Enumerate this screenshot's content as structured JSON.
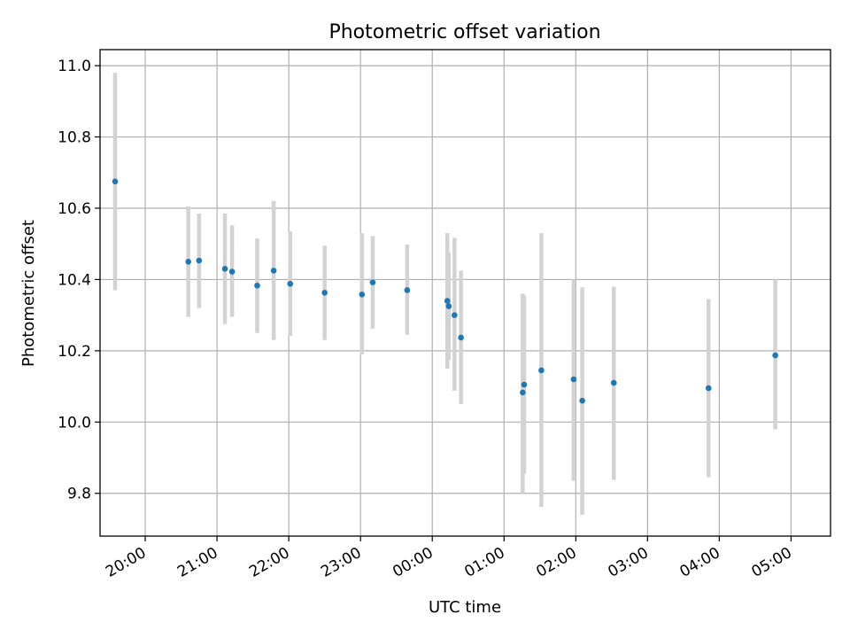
{
  "chart_data": {
    "type": "scatter",
    "title": "Photometric offset variation",
    "xlabel": "UTC time",
    "ylabel": "Photometric offset",
    "x_unit": "hours since 19:00 UTC (ticks wrap past midnight)",
    "xlim": [
      0.37,
      10.55
    ],
    "ylim": [
      9.68,
      11.045
    ],
    "x_ticks": [
      {
        "x": 1,
        "label": "20:00"
      },
      {
        "x": 2,
        "label": "21:00"
      },
      {
        "x": 3,
        "label": "22:00"
      },
      {
        "x": 4,
        "label": "23:00"
      },
      {
        "x": 5,
        "label": "00:00"
      },
      {
        "x": 6,
        "label": "01:00"
      },
      {
        "x": 7,
        "label": "02:00"
      },
      {
        "x": 8,
        "label": "03:00"
      },
      {
        "x": 9,
        "label": "04:00"
      },
      {
        "x": 10,
        "label": "05:00"
      }
    ],
    "y_ticks": [
      {
        "y": 9.8,
        "label": "9.8"
      },
      {
        "y": 10.0,
        "label": "10.0"
      },
      {
        "y": 10.2,
        "label": "10.2"
      },
      {
        "y": 10.4,
        "label": "10.4"
      },
      {
        "y": 10.6,
        "label": "10.6"
      },
      {
        "y": 10.8,
        "label": "10.8"
      },
      {
        "y": 11.0,
        "label": "11.0"
      }
    ],
    "grid": true,
    "colors": {
      "point": "#1f77b4",
      "errorbar": "#d3d3d3",
      "grid": "#b0b0b0"
    },
    "points": [
      {
        "x": 0.58,
        "y": 10.675,
        "err_lo": 10.37,
        "err_hi": 10.98
      },
      {
        "x": 1.6,
        "y": 10.45,
        "err_lo": 10.295,
        "err_hi": 10.605
      },
      {
        "x": 1.75,
        "y": 10.453,
        "err_lo": 10.32,
        "err_hi": 10.585
      },
      {
        "x": 2.11,
        "y": 10.43,
        "err_lo": 10.275,
        "err_hi": 10.585
      },
      {
        "x": 2.21,
        "y": 10.422,
        "err_lo": 10.295,
        "err_hi": 10.552
      },
      {
        "x": 2.56,
        "y": 10.383,
        "err_lo": 10.25,
        "err_hi": 10.515
      },
      {
        "x": 2.79,
        "y": 10.425,
        "err_lo": 10.23,
        "err_hi": 10.62
      },
      {
        "x": 3.02,
        "y": 10.388,
        "err_lo": 10.242,
        "err_hi": 10.535
      },
      {
        "x": 3.5,
        "y": 10.363,
        "err_lo": 10.23,
        "err_hi": 10.495
      },
      {
        "x": 4.02,
        "y": 10.358,
        "err_lo": 10.19,
        "err_hi": 10.53
      },
      {
        "x": 4.17,
        "y": 10.392,
        "err_lo": 10.262,
        "err_hi": 10.522
      },
      {
        "x": 4.65,
        "y": 10.37,
        "err_lo": 10.245,
        "err_hi": 10.498
      },
      {
        "x": 5.21,
        "y": 10.34,
        "err_lo": 10.15,
        "err_hi": 10.53
      },
      {
        "x": 5.23,
        "y": 10.325,
        "err_lo": 10.175,
        "err_hi": 10.475
      },
      {
        "x": 5.31,
        "y": 10.3,
        "err_lo": 10.088,
        "err_hi": 10.517
      },
      {
        "x": 5.4,
        "y": 10.237,
        "err_lo": 10.05,
        "err_hi": 10.425
      },
      {
        "x": 6.26,
        "y": 10.083,
        "err_lo": 9.8,
        "err_hi": 10.36
      },
      {
        "x": 6.28,
        "y": 10.105,
        "err_lo": 9.855,
        "err_hi": 10.355
      },
      {
        "x": 6.52,
        "y": 10.145,
        "err_lo": 9.762,
        "err_hi": 10.53
      },
      {
        "x": 6.97,
        "y": 10.12,
        "err_lo": 9.835,
        "err_hi": 10.4
      },
      {
        "x": 7.09,
        "y": 10.06,
        "err_lo": 9.74,
        "err_hi": 10.378
      },
      {
        "x": 7.53,
        "y": 10.11,
        "err_lo": 9.838,
        "err_hi": 10.38
      },
      {
        "x": 8.85,
        "y": 10.095,
        "err_lo": 9.845,
        "err_hi": 10.345
      },
      {
        "x": 9.78,
        "y": 10.187,
        "err_lo": 9.98,
        "err_hi": 10.4
      }
    ]
  }
}
